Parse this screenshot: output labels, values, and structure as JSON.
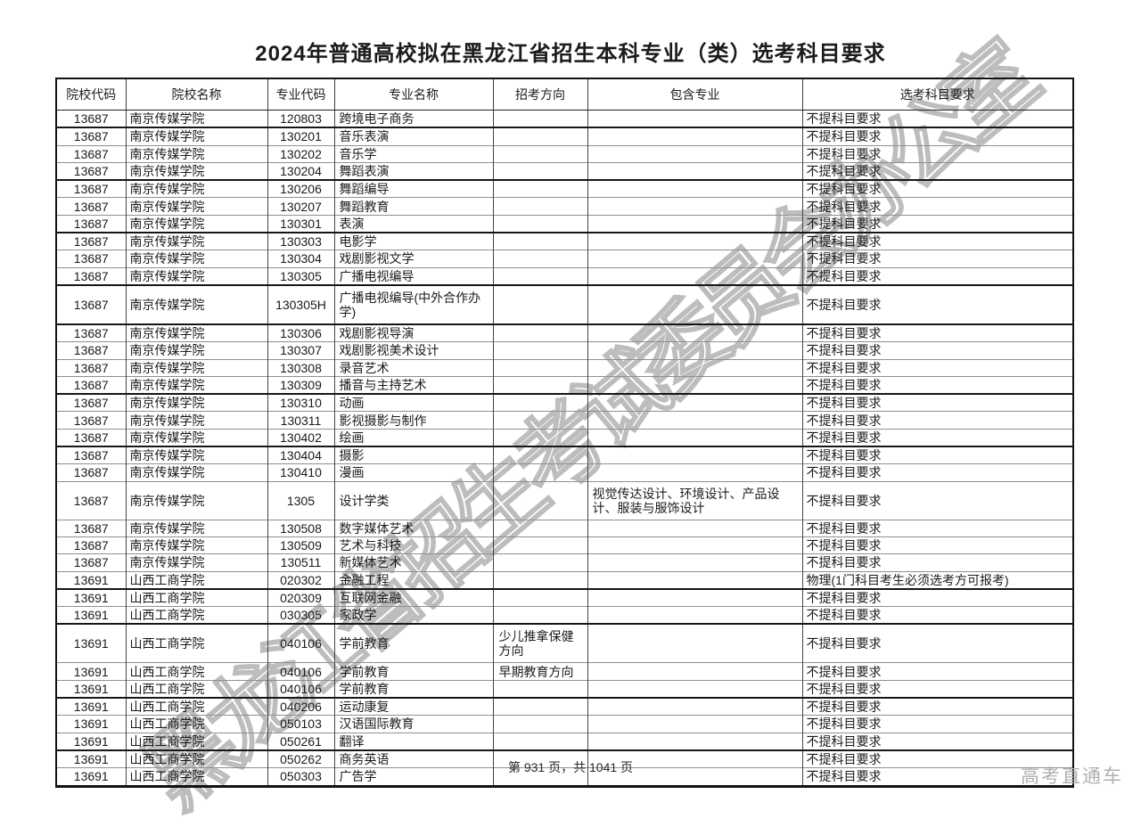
{
  "title": "2024年普通高校拟在黑龙江省招生本科专业（类）选考科目要求",
  "watermark": "黑龙江省招生考试委员会办公室",
  "footer": {
    "page_info": "第 931 页，共 1041 页",
    "brand": "高考直通车"
  },
  "colors": {
    "text": "#1b1b1b",
    "border_thick": "#111111",
    "border_thin": "#909090",
    "watermark": "#bdbdbd",
    "brand_gray": "#b0b0b0"
  },
  "table": {
    "headers": [
      "院校代码",
      "院校名称",
      "专业代码",
      "专业名称",
      "招考方向",
      "包含专业",
      "选考科目要求"
    ],
    "fields": [
      "school_code",
      "school_name",
      "major_code",
      "major_name",
      "direction",
      "included_majors",
      "requirement"
    ],
    "rows": [
      {
        "school_code": "13687",
        "school_name": "南京传媒学院",
        "major_code": "120803",
        "major_name": "跨境电子商务",
        "direction": "",
        "included_majors": "",
        "requirement": "不提科目要求",
        "tall": false,
        "thick": true
      },
      {
        "school_code": "13687",
        "school_name": "南京传媒学院",
        "major_code": "130201",
        "major_name": "音乐表演",
        "direction": "",
        "included_majors": "",
        "requirement": "不提科目要求",
        "tall": false,
        "thick": false
      },
      {
        "school_code": "13687",
        "school_name": "南京传媒学院",
        "major_code": "130202",
        "major_name": "音乐学",
        "direction": "",
        "included_majors": "",
        "requirement": "不提科目要求",
        "tall": false,
        "thick": false
      },
      {
        "school_code": "13687",
        "school_name": "南京传媒学院",
        "major_code": "130204",
        "major_name": "舞蹈表演",
        "direction": "",
        "included_majors": "",
        "requirement": "不提科目要求",
        "tall": false,
        "thick": true
      },
      {
        "school_code": "13687",
        "school_name": "南京传媒学院",
        "major_code": "130206",
        "major_name": "舞蹈编导",
        "direction": "",
        "included_majors": "",
        "requirement": "不提科目要求",
        "tall": false,
        "thick": false
      },
      {
        "school_code": "13687",
        "school_name": "南京传媒学院",
        "major_code": "130207",
        "major_name": "舞蹈教育",
        "direction": "",
        "included_majors": "",
        "requirement": "不提科目要求",
        "tall": false,
        "thick": false
      },
      {
        "school_code": "13687",
        "school_name": "南京传媒学院",
        "major_code": "130301",
        "major_name": "表演",
        "direction": "",
        "included_majors": "",
        "requirement": "不提科目要求",
        "tall": false,
        "thick": true
      },
      {
        "school_code": "13687",
        "school_name": "南京传媒学院",
        "major_code": "130303",
        "major_name": "电影学",
        "direction": "",
        "included_majors": "",
        "requirement": "不提科目要求",
        "tall": false,
        "thick": false
      },
      {
        "school_code": "13687",
        "school_name": "南京传媒学院",
        "major_code": "130304",
        "major_name": "戏剧影视文学",
        "direction": "",
        "included_majors": "",
        "requirement": "不提科目要求",
        "tall": false,
        "thick": false
      },
      {
        "school_code": "13687",
        "school_name": "南京传媒学院",
        "major_code": "130305",
        "major_name": "广播电视编导",
        "direction": "",
        "included_majors": "",
        "requirement": "不提科目要求",
        "tall": false,
        "thick": true
      },
      {
        "school_code": "13687",
        "school_name": "南京传媒学院",
        "major_code": "130305H",
        "major_name": "广播电视编导(中外合作办学)",
        "direction": "",
        "included_majors": "",
        "requirement": "不提科目要求",
        "tall": true,
        "thick": true
      },
      {
        "school_code": "13687",
        "school_name": "南京传媒学院",
        "major_code": "130306",
        "major_name": "戏剧影视导演",
        "direction": "",
        "included_majors": "",
        "requirement": "不提科目要求",
        "tall": false,
        "thick": false
      },
      {
        "school_code": "13687",
        "school_name": "南京传媒学院",
        "major_code": "130307",
        "major_name": "戏剧影视美术设计",
        "direction": "",
        "included_majors": "",
        "requirement": "不提科目要求",
        "tall": false,
        "thick": false
      },
      {
        "school_code": "13687",
        "school_name": "南京传媒学院",
        "major_code": "130308",
        "major_name": "录音艺术",
        "direction": "",
        "included_majors": "",
        "requirement": "不提科目要求",
        "tall": false,
        "thick": false
      },
      {
        "school_code": "13687",
        "school_name": "南京传媒学院",
        "major_code": "130309",
        "major_name": "播音与主持艺术",
        "direction": "",
        "included_majors": "",
        "requirement": "不提科目要求",
        "tall": false,
        "thick": true
      },
      {
        "school_code": "13687",
        "school_name": "南京传媒学院",
        "major_code": "130310",
        "major_name": "动画",
        "direction": "",
        "included_majors": "",
        "requirement": "不提科目要求",
        "tall": false,
        "thick": false
      },
      {
        "school_code": "13687",
        "school_name": "南京传媒学院",
        "major_code": "130311",
        "major_name": "影视摄影与制作",
        "direction": "",
        "included_majors": "",
        "requirement": "不提科目要求",
        "tall": false,
        "thick": false
      },
      {
        "school_code": "13687",
        "school_name": "南京传媒学院",
        "major_code": "130402",
        "major_name": "绘画",
        "direction": "",
        "included_majors": "",
        "requirement": "不提科目要求",
        "tall": false,
        "thick": true
      },
      {
        "school_code": "13687",
        "school_name": "南京传媒学院",
        "major_code": "130404",
        "major_name": "摄影",
        "direction": "",
        "included_majors": "",
        "requirement": "不提科目要求",
        "tall": false,
        "thick": false
      },
      {
        "school_code": "13687",
        "school_name": "南京传媒学院",
        "major_code": "130410",
        "major_name": "漫画",
        "direction": "",
        "included_majors": "",
        "requirement": "不提科目要求",
        "tall": false,
        "thick": false
      },
      {
        "school_code": "13687",
        "school_name": "南京传媒学院",
        "major_code": "1305",
        "major_name": "设计学类",
        "direction": "",
        "included_majors": "视觉传达设计、环境设计、产品设计、服装与服饰设计",
        "requirement": "不提科目要求",
        "tall": true,
        "thick": false
      },
      {
        "school_code": "13687",
        "school_name": "南京传媒学院",
        "major_code": "130508",
        "major_name": "数字媒体艺术",
        "direction": "",
        "included_majors": "",
        "requirement": "不提科目要求",
        "tall": false,
        "thick": false
      },
      {
        "school_code": "13687",
        "school_name": "南京传媒学院",
        "major_code": "130509",
        "major_name": "艺术与科技",
        "direction": "",
        "included_majors": "",
        "requirement": "不提科目要求",
        "tall": false,
        "thick": false
      },
      {
        "school_code": "13687",
        "school_name": "南京传媒学院",
        "major_code": "130511",
        "major_name": "新媒体艺术",
        "direction": "",
        "included_majors": "",
        "requirement": "不提科目要求",
        "tall": false,
        "thick": false
      },
      {
        "school_code": "13691",
        "school_name": "山西工商学院",
        "major_code": "020302",
        "major_name": "金融工程",
        "direction": "",
        "included_majors": "",
        "requirement": "物理(1门科目考生必须选考方可报考)",
        "tall": false,
        "thick": true
      },
      {
        "school_code": "13691",
        "school_name": "山西工商学院",
        "major_code": "020309",
        "major_name": "互联网金融",
        "direction": "",
        "included_majors": "",
        "requirement": "不提科目要求",
        "tall": false,
        "thick": false
      },
      {
        "school_code": "13691",
        "school_name": "山西工商学院",
        "major_code": "030305",
        "major_name": "家政学",
        "direction": "",
        "included_majors": "",
        "requirement": "不提科目要求",
        "tall": false,
        "thick": true
      },
      {
        "school_code": "13691",
        "school_name": "山西工商学院",
        "major_code": "040106",
        "major_name": "学前教育",
        "direction": "少儿推拿保健方向",
        "included_majors": "",
        "requirement": "不提科目要求",
        "tall": true,
        "thick": false
      },
      {
        "school_code": "13691",
        "school_name": "山西工商学院",
        "major_code": "040106",
        "major_name": "学前教育",
        "direction": "早期教育方向",
        "included_majors": "",
        "requirement": "不提科目要求",
        "tall": false,
        "thick": false
      },
      {
        "school_code": "13691",
        "school_name": "山西工商学院",
        "major_code": "040106",
        "major_name": "学前教育",
        "direction": "",
        "included_majors": "",
        "requirement": "不提科目要求",
        "tall": false,
        "thick": true
      },
      {
        "school_code": "13691",
        "school_name": "山西工商学院",
        "major_code": "040206",
        "major_name": "运动康复",
        "direction": "",
        "included_majors": "",
        "requirement": "不提科目要求",
        "tall": false,
        "thick": false
      },
      {
        "school_code": "13691",
        "school_name": "山西工商学院",
        "major_code": "050103",
        "major_name": "汉语国际教育",
        "direction": "",
        "included_majors": "",
        "requirement": "不提科目要求",
        "tall": false,
        "thick": false
      },
      {
        "school_code": "13691",
        "school_name": "山西工商学院",
        "major_code": "050261",
        "major_name": "翻译",
        "direction": "",
        "included_majors": "",
        "requirement": "不提科目要求",
        "tall": false,
        "thick": true
      },
      {
        "school_code": "13691",
        "school_name": "山西工商学院",
        "major_code": "050262",
        "major_name": "商务英语",
        "direction": "",
        "included_majors": "",
        "requirement": "不提科目要求",
        "tall": false,
        "thick": false
      },
      {
        "school_code": "13691",
        "school_name": "山西工商学院",
        "major_code": "050303",
        "major_name": "广告学",
        "direction": "",
        "included_majors": "",
        "requirement": "不提科目要求",
        "tall": false,
        "thick": false
      }
    ]
  }
}
